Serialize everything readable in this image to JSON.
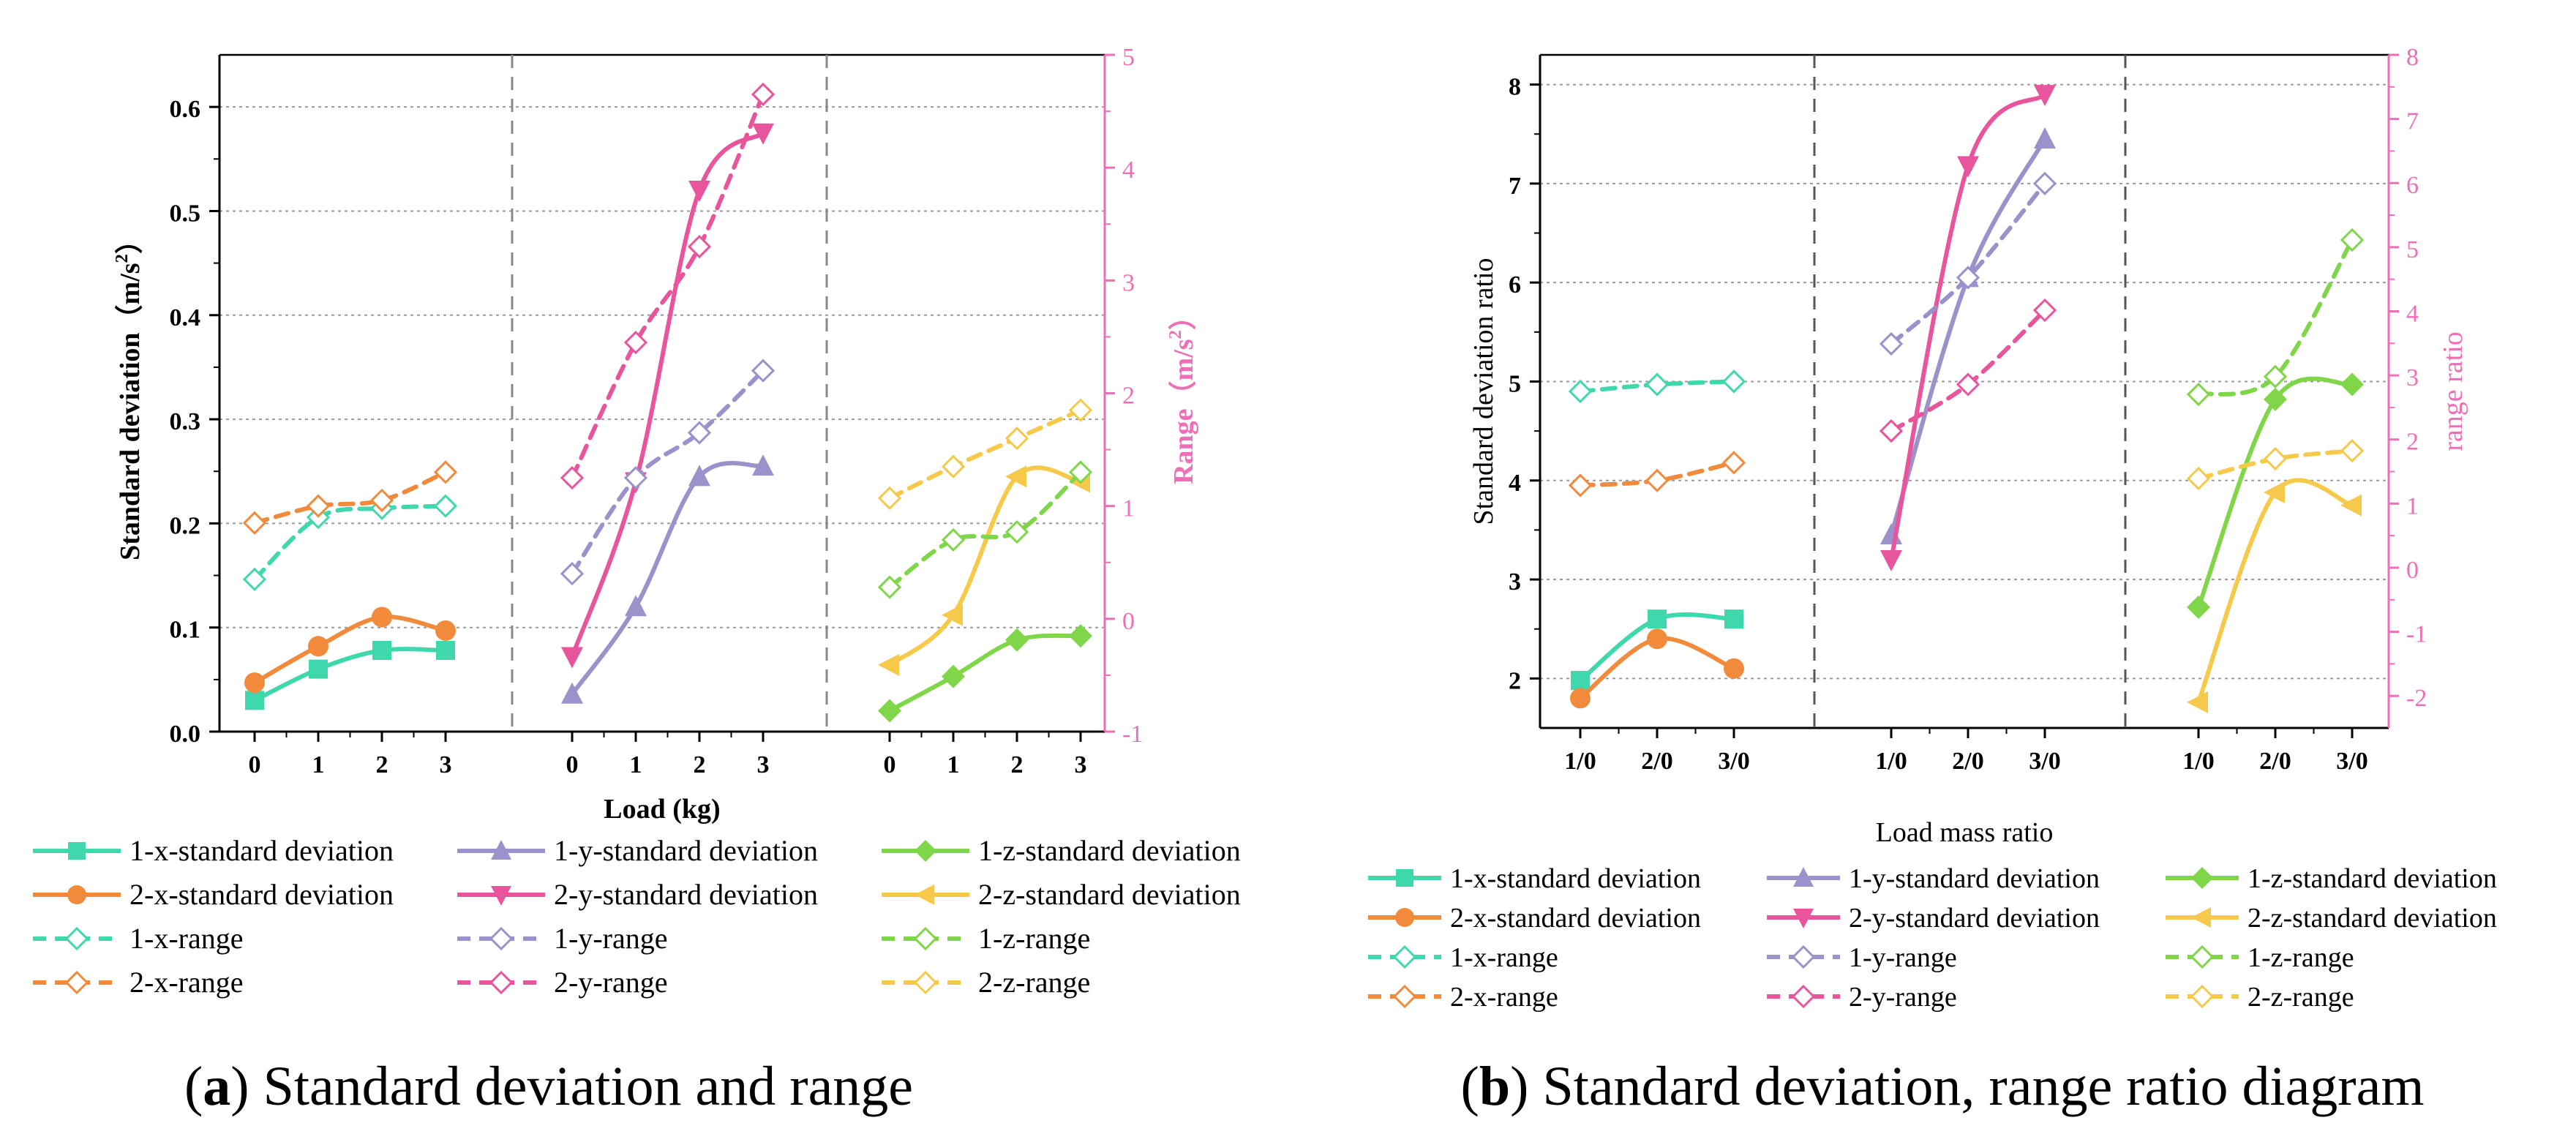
{
  "figure": {
    "caption_a_letter": "a",
    "caption_a_text": "Standard deviation and range",
    "caption_b_letter": "b",
    "caption_b_text": "Standard deviation, range ratio diagram"
  },
  "colors": {
    "x1": "#3fd8ac",
    "x2": "#f28a3c",
    "y1": "#9b92cc",
    "y2": "#e8559d",
    "z1": "#7fd648",
    "z2": "#f6c94a",
    "range_axis": "#ee6fb5"
  },
  "chart_data": [
    {
      "id": "a",
      "type": "line",
      "title": "Standard deviation and range",
      "xlabel": "Load (kg)",
      "ylabel": "Standard deviation（m/s²）",
      "ylabel_main": "Standard deviation（m/s",
      "ylabel_sup": "2",
      "ylabel_close": "）",
      "y2label": "Range（m/s²）",
      "y2label_main": "Range（m/s",
      "y2label_sup": "2",
      "y2label_close": "）",
      "ylim": [
        0,
        0.65
      ],
      "y2lim": [
        -1,
        5
      ],
      "yticks": [
        "0.0",
        "0.1",
        "0.2",
        "0.3",
        "0.4",
        "0.5",
        "0.6"
      ],
      "y2ticks": [
        "-1",
        "0",
        "1",
        "2",
        "3",
        "4",
        "5"
      ],
      "group_categories": [
        [
          "0",
          "1",
          "2",
          "3"
        ],
        [
          "0",
          "1",
          "2",
          "3"
        ],
        [
          "0",
          "1",
          "2",
          "3"
        ]
      ],
      "grid": "horizontal dotted",
      "series": [
        {
          "name": "1-x-standard deviation",
          "color": "x1",
          "axis": "left",
          "group": 0,
          "marker": "square",
          "values": [
            0.03,
            0.06,
            0.078,
            0.078
          ]
        },
        {
          "name": "2-x-standard deviation",
          "color": "x2",
          "axis": "left",
          "group": 0,
          "marker": "circle",
          "values": [
            0.047,
            0.082,
            0.11,
            0.097
          ]
        },
        {
          "name": "1-x-range",
          "color": "x1",
          "axis": "right",
          "group": 0,
          "marker": "diamond",
          "dashed": true,
          "values": [
            0.35,
            0.9,
            0.98,
            1.0
          ]
        },
        {
          "name": "2-x-range",
          "color": "x2",
          "axis": "right",
          "group": 0,
          "marker": "diamond",
          "dashed": true,
          "values": [
            0.85,
            1.0,
            1.05,
            1.3
          ]
        },
        {
          "name": "1-y-standard deviation",
          "color": "y1",
          "axis": "left",
          "group": 1,
          "marker": "tri-up",
          "values": [
            0.036,
            0.12,
            0.245,
            0.255
          ]
        },
        {
          "name": "2-y-standard deviation",
          "color": "y2",
          "axis": "left",
          "group": 1,
          "marker": "tri-down",
          "values": [
            0.072,
            0.24,
            0.52,
            0.575
          ]
        },
        {
          "name": "1-y-range",
          "color": "y1",
          "axis": "right",
          "group": 1,
          "marker": "diamond",
          "dashed": true,
          "values": [
            0.4,
            1.25,
            1.65,
            2.2
          ]
        },
        {
          "name": "2-y-range",
          "color": "y2",
          "axis": "right",
          "group": 1,
          "marker": "diamond",
          "dashed": true,
          "values": [
            1.25,
            2.45,
            3.3,
            4.65
          ]
        },
        {
          "name": "1-z-standard deviation",
          "color": "z1",
          "axis": "left",
          "group": 2,
          "marker": "diamond-filled",
          "values": [
            0.02,
            0.053,
            0.088,
            0.092
          ]
        },
        {
          "name": "2-z-standard deviation",
          "color": "z2",
          "axis": "left",
          "group": 2,
          "marker": "tri-left",
          "values": [
            0.064,
            0.112,
            0.245,
            0.24
          ]
        },
        {
          "name": "1-z-range",
          "color": "z1",
          "axis": "right",
          "group": 2,
          "marker": "diamond",
          "dashed": true,
          "values": [
            0.28,
            0.7,
            0.77,
            1.3
          ]
        },
        {
          "name": "2-z-range",
          "color": "z2",
          "axis": "right",
          "group": 2,
          "marker": "diamond",
          "dashed": true,
          "values": [
            1.07,
            1.35,
            1.6,
            1.85
          ]
        }
      ]
    },
    {
      "id": "b",
      "type": "line",
      "title": "Standard deviation, range ratio diagram",
      "xlabel": "Load mass ratio",
      "ylabel": "Standard deviation ratio",
      "y2label": "range ratio",
      "ylim": [
        1.5,
        8.3
      ],
      "y2lim": [
        -2.5,
        8
      ],
      "yticks": [
        "2",
        "3",
        "4",
        "5",
        "6",
        "7",
        "8"
      ],
      "y2ticks": [
        "-2",
        "-1",
        "0",
        "1",
        "2",
        "3",
        "4",
        "5",
        "6",
        "7",
        "8"
      ],
      "group_categories": [
        [
          "1/0",
          "2/0",
          "3/0"
        ],
        [
          "1/0",
          "2/0",
          "3/0"
        ],
        [
          "1/0",
          "2/0",
          "3/0"
        ]
      ],
      "grid": "horizontal dotted",
      "series": [
        {
          "name": "1-x-standard deviation",
          "color": "x1",
          "axis": "left",
          "group": 0,
          "marker": "square",
          "values": [
            1.98,
            2.6,
            2.6
          ]
        },
        {
          "name": "2-x-standard deviation",
          "color": "x2",
          "axis": "left",
          "group": 0,
          "marker": "circle",
          "values": [
            1.8,
            2.4,
            2.1
          ]
        },
        {
          "name": "1-x-range",
          "color": "x1",
          "axis": "left",
          "group": 0,
          "marker": "diamond",
          "dashed": true,
          "values": [
            4.9,
            4.97,
            5.0
          ]
        },
        {
          "name": "2-x-range",
          "color": "x2",
          "axis": "left",
          "group": 0,
          "marker": "diamond",
          "dashed": true,
          "values": [
            3.95,
            4.0,
            4.18
          ]
        },
        {
          "name": "1-y-standard deviation",
          "color": "y1",
          "axis": "left",
          "group": 1,
          "marker": "tri-up",
          "values": [
            3.45,
            6.05,
            7.45
          ]
        },
        {
          "name": "2-y-standard deviation",
          "color": "y2",
          "axis": "left",
          "group": 1,
          "marker": "tri-down",
          "values": [
            3.2,
            7.18,
            7.9
          ]
        },
        {
          "name": "1-y-range",
          "color": "y1",
          "axis": "left",
          "group": 1,
          "marker": "diamond",
          "dashed": true,
          "values": [
            5.38,
            6.05,
            7.0
          ]
        },
        {
          "name": "2-y-range",
          "color": "y2",
          "axis": "left",
          "group": 1,
          "marker": "diamond",
          "dashed": true,
          "values": [
            4.5,
            4.97,
            5.72
          ]
        },
        {
          "name": "1-z-standard deviation",
          "color": "z1",
          "axis": "left",
          "group": 2,
          "marker": "diamond-filled",
          "values": [
            2.72,
            4.82,
            4.97
          ]
        },
        {
          "name": "2-z-standard deviation",
          "color": "z2",
          "axis": "left",
          "group": 2,
          "marker": "tri-left",
          "values": [
            1.76,
            3.88,
            3.75
          ]
        },
        {
          "name": "1-z-range",
          "color": "z1",
          "axis": "left",
          "group": 2,
          "marker": "diamond",
          "dashed": true,
          "values": [
            4.87,
            5.05,
            6.43
          ]
        },
        {
          "name": "2-z-range",
          "color": "z2",
          "axis": "left",
          "group": 2,
          "marker": "diamond",
          "dashed": true,
          "values": [
            4.02,
            4.22,
            4.3
          ]
        }
      ]
    }
  ],
  "legend": [
    {
      "label": "1-x-standard deviation",
      "color": "x1",
      "marker": "square",
      "dashed": false
    },
    {
      "label": "1-y-standard deviation",
      "color": "y1",
      "marker": "tri-up",
      "dashed": false
    },
    {
      "label": "1-z-standard deviation",
      "color": "z1",
      "marker": "diamond-filled",
      "dashed": false
    },
    {
      "label": "2-x-standard deviation",
      "color": "x2",
      "marker": "circle",
      "dashed": false
    },
    {
      "label": "2-y-standard deviation",
      "color": "y2",
      "marker": "tri-down",
      "dashed": false
    },
    {
      "label": "2-z-standard deviation",
      "color": "z2",
      "marker": "tri-left",
      "dashed": false
    },
    {
      "label": "1-x-range",
      "color": "x1",
      "marker": "diamond",
      "dashed": true
    },
    {
      "label": "1-y-range",
      "color": "y1",
      "marker": "diamond",
      "dashed": true
    },
    {
      "label": "1-z-range",
      "color": "z1",
      "marker": "diamond",
      "dashed": true
    },
    {
      "label": "2-x-range",
      "color": "x2",
      "marker": "diamond",
      "dashed": true
    },
    {
      "label": "2-y-range",
      "color": "y2",
      "marker": "diamond",
      "dashed": true
    },
    {
      "label": "2-z-range",
      "color": "z2",
      "marker": "diamond",
      "dashed": true
    }
  ]
}
